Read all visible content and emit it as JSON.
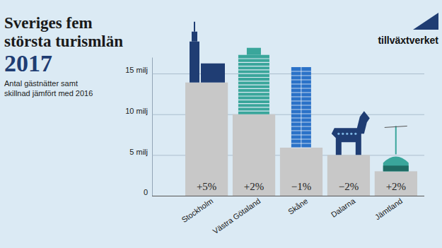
{
  "chart_data": {
    "type": "bar",
    "title": "Sveriges fem största turismlän 2017",
    "subtitle": "Antal gästnätter samt skillnad jämfört med 2016",
    "source": "tillväxtverket",
    "categories": [
      "Stockholm",
      "Västra Götaland",
      "Skåne",
      "Dalarna",
      "Jämtland"
    ],
    "values": [
      13.9,
      10,
      5.9,
      5,
      3
    ],
    "color": "#c8c8c8",
    "changes": [
      5,
      2,
      -1,
      -2,
      2
    ],
    "change_labels": [
      "+5%",
      "+2%",
      "−1%",
      "−2%",
      "+2%"
    ],
    "ylim": [
      0,
      17
    ],
    "yticks": [
      0,
      {
        "value": 5,
        "label": "5 milj"
      },
      {
        "value": 10,
        "label": "10 milj"
      },
      {
        "value": 15,
        "label": "15 milj"
      }
    ],
    "grid": true
  }
}
